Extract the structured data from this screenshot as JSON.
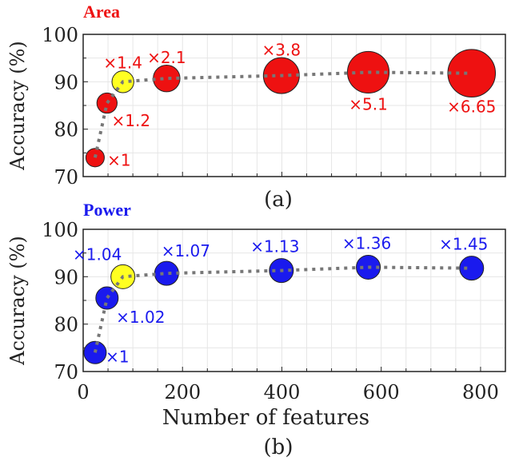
{
  "chart_data": [
    {
      "type": "scatter",
      "title": "Area",
      "caption": "(a)",
      "title_color": "#ee1111",
      "point_color": "#ee1111",
      "highlight_color": "#ffff22",
      "highlight_index": 2,
      "ylabel": "Accuracy (%)",
      "xlabel": "",
      "ylim": [
        70,
        100
      ],
      "xlim": [
        0,
        850
      ],
      "yticks": [
        "70",
        "80",
        "90",
        "100"
      ],
      "x": [
        24,
        48,
        80,
        168,
        399,
        574,
        782
      ],
      "y": [
        74,
        85.5,
        90,
        90.7,
        91.3,
        92,
        91.8
      ],
      "bubble_size": [
        1,
        1.2,
        1.4,
        2.1,
        3.8,
        5.1,
        6.65
      ],
      "labels": [
        "×1",
        "×1.2",
        "×1.4",
        "×2.1",
        "×3.8",
        "×5.1",
        "×6.65"
      ],
      "grid": true
    },
    {
      "type": "scatter",
      "title": "Power",
      "caption": "(b)",
      "title_color": "#1a1aee",
      "point_color": "#1a1aee",
      "highlight_color": "#ffff22",
      "highlight_index": 2,
      "ylabel": "Accuracy (%)",
      "xlabel": "Number of features",
      "ylim": [
        70,
        100
      ],
      "xlim": [
        0,
        850
      ],
      "yticks": [
        "70",
        "80",
        "90",
        "100"
      ],
      "xticks": [
        "0",
        "200",
        "400",
        "600",
        "800"
      ],
      "x": [
        24,
        48,
        80,
        168,
        399,
        574,
        782
      ],
      "y": [
        74,
        85.5,
        90,
        90.7,
        91.3,
        92,
        91.8
      ],
      "bubble_size": [
        1,
        1.02,
        1.04,
        1.07,
        1.13,
        1.36,
        1.45
      ],
      "labels": [
        "×1",
        "×1.02",
        "×1.04",
        "×1.07",
        "×1.13",
        "×1.36",
        "×1.45"
      ],
      "grid": true
    }
  ]
}
